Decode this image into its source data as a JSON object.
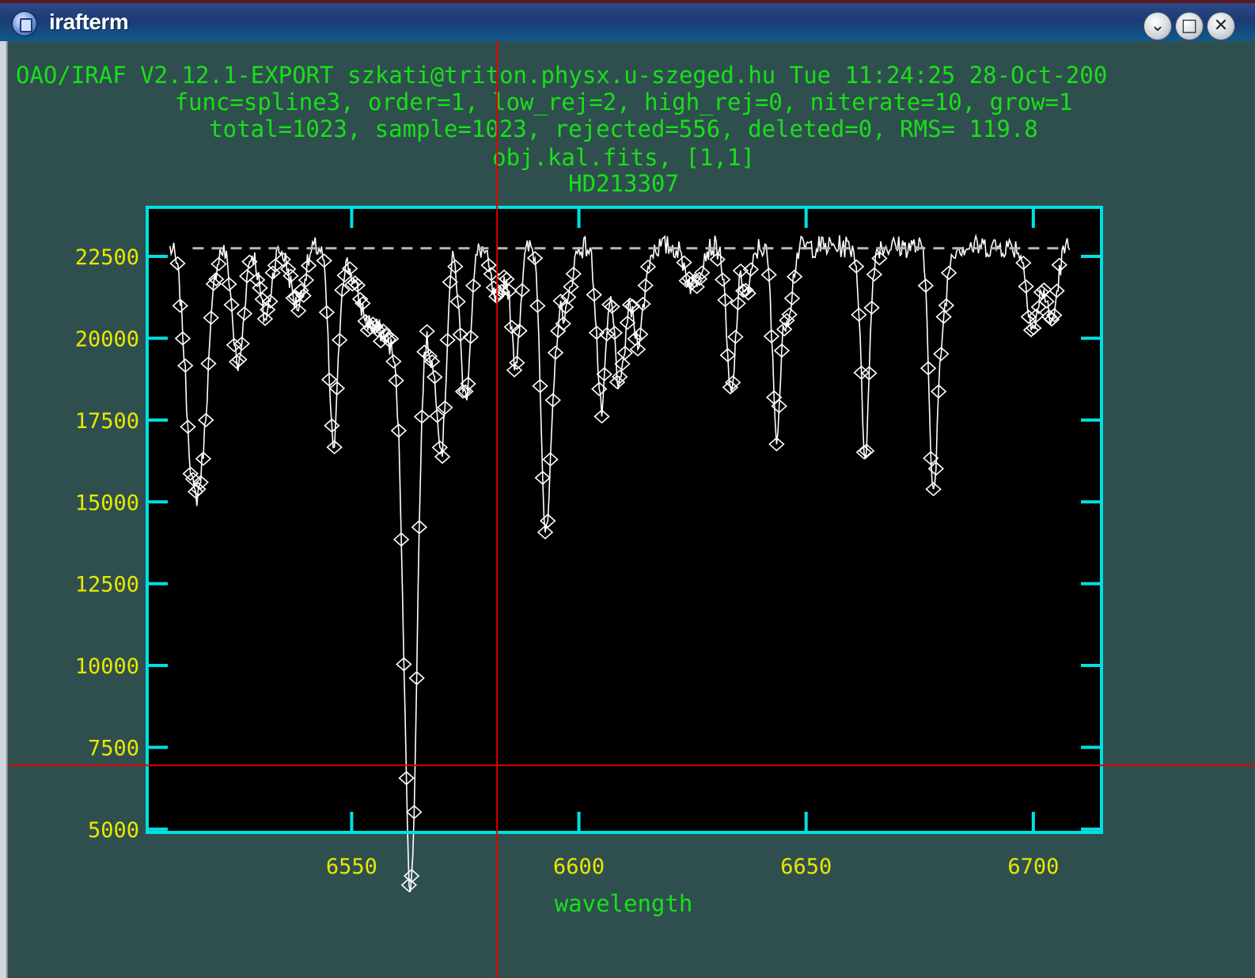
{
  "window": {
    "title": "irafterm",
    "buttons": {
      "minimize_icon": "chevron-down-icon",
      "maximize_icon": "square-icon",
      "close_icon": "close-icon"
    }
  },
  "terminal": {
    "header_lines": [
      "OAO/IRAF V2.12.1-EXPORT szkati@triton.physx.u-szeged.hu Tue 11:24:25 28-Oct-200",
      "func=spline3, order=1, low_rej=2, high_rej=0, niterate=10, grow=1",
      "total=1023, sample=1023, rejected=556, deleted=0, RMS=  119.8",
      "obj.kal.fits, [1,1]",
      "HD213307"
    ],
    "colors": {
      "background": "#2f4f4f",
      "header": "#18e018",
      "ticks": "#e8e800",
      "frame": "#00e0e0",
      "data": "#ffffff",
      "cursor": "#e00000"
    }
  },
  "chart_data": {
    "type": "line",
    "xlabel": "wavelength",
    "ylabel": "",
    "xlim": [
      6505,
      6715
    ],
    "ylim": [
      4900,
      24000
    ],
    "x_ticks": [
      6550,
      6600,
      6650,
      6700
    ],
    "y_ticks": [
      5000,
      7500,
      10000,
      12500,
      15000,
      17500,
      20000,
      22500
    ],
    "continuum_level": 22800,
    "fit_line": {
      "style": "dashed",
      "level": 22750
    },
    "cursor": {
      "x": 6582,
      "y": 6950
    },
    "absorption_lines": [
      {
        "x": 6515,
        "depth": 6500,
        "width": 1.6
      },
      {
        "x": 6517.5,
        "depth": 4000,
        "width": 1.4
      },
      {
        "x": 6525,
        "depth": 3700,
        "width": 1.2
      },
      {
        "x": 6531,
        "depth": 2200,
        "width": 1.2
      },
      {
        "x": 6538,
        "depth": 1800,
        "width": 1.5
      },
      {
        "x": 6546,
        "depth": 6100,
        "width": 1.0
      },
      {
        "x": 6553,
        "depth": 1500,
        "width": 2.5
      },
      {
        "x": 6560,
        "depth": 3000,
        "width": 4.0
      },
      {
        "x": 6563,
        "depth": 17400,
        "width": 1.4
      },
      {
        "x": 6568,
        "depth": 3000,
        "width": 1.2
      },
      {
        "x": 6570,
        "depth": 5200,
        "width": 0.9
      },
      {
        "x": 6575,
        "depth": 4600,
        "width": 1.1
      },
      {
        "x": 6582,
        "depth": 1800,
        "width": 1.3
      },
      {
        "x": 6586,
        "depth": 3500,
        "width": 1.0
      },
      {
        "x": 6592.5,
        "depth": 7300,
        "width": 0.9
      },
      {
        "x": 6594,
        "depth": 4000,
        "width": 1.0
      },
      {
        "x": 6597,
        "depth": 2000,
        "width": 1.2
      },
      {
        "x": 6605,
        "depth": 5000,
        "width": 1.0
      },
      {
        "x": 6609,
        "depth": 4300,
        "width": 1.2
      },
      {
        "x": 6613,
        "depth": 2800,
        "width": 1.3
      },
      {
        "x": 6625,
        "depth": 1200,
        "width": 1.5
      },
      {
        "x": 6633.5,
        "depth": 4600,
        "width": 1.0
      },
      {
        "x": 6637,
        "depth": 1400,
        "width": 1.0
      },
      {
        "x": 6643.5,
        "depth": 5600,
        "width": 0.9
      },
      {
        "x": 6646,
        "depth": 2000,
        "width": 1.0
      },
      {
        "x": 6663,
        "depth": 6300,
        "width": 0.9
      },
      {
        "x": 6678,
        "depth": 7300,
        "width": 0.9
      },
      {
        "x": 6680,
        "depth": 2000,
        "width": 1.0
      },
      {
        "x": 6700,
        "depth": 2500,
        "width": 1.3
      },
      {
        "x": 6704,
        "depth": 2300,
        "width": 1.2
      }
    ]
  }
}
